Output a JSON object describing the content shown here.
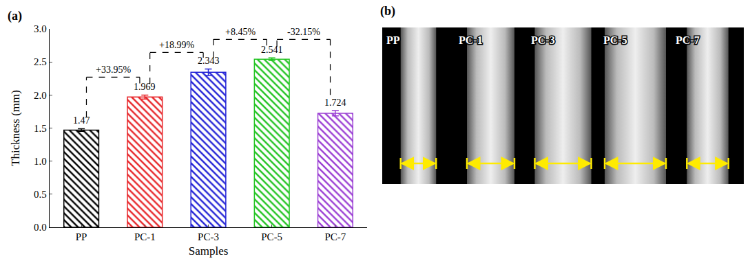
{
  "chart_data": {
    "type": "bar",
    "label": "(a)",
    "categories": [
      "PP",
      "PC-1",
      "PC-3",
      "PC-5",
      "PC-7"
    ],
    "values": [
      1.47,
      1.969,
      2.343,
      2.541,
      1.724
    ],
    "errors": [
      0.02,
      0.03,
      0.05,
      0.02,
      0.04
    ],
    "colors": [
      "#000000",
      "#e8262a",
      "#2323d6",
      "#22c422",
      "#9b3fd4"
    ],
    "xlabel": "Samples",
    "ylabel": "Thickness (mm)",
    "ylim": [
      0,
      3.0
    ],
    "yticks": [
      {
        "value": 0,
        "label": "0.0"
      },
      {
        "value": 0.5,
        "label": "0.5"
      },
      {
        "value": 1,
        "label": "1.0"
      },
      {
        "value": 1.5,
        "label": "1.5"
      },
      {
        "value": 2,
        "label": "2.0"
      },
      {
        "value": 2.5,
        "label": "2.5"
      },
      {
        "value": 3,
        "label": "3.0"
      }
    ],
    "data_labels": true,
    "annotations": [
      {
        "text": "+33.95%",
        "between": [
          "PP",
          "PC-1"
        ]
      },
      {
        "text": "+18.99%",
        "between": [
          "PC-1",
          "PC-3"
        ]
      },
      {
        "text": "+8.45%",
        "between": [
          "PC-3",
          "PC-5"
        ]
      },
      {
        "text": "-32.15%",
        "between": [
          "PC-5",
          "PC-7"
        ]
      }
    ]
  },
  "panel_b": {
    "label": "(b)",
    "samples": [
      "PP",
      "PC-1",
      "PC-3",
      "PC-5",
      "PC-7"
    ]
  }
}
